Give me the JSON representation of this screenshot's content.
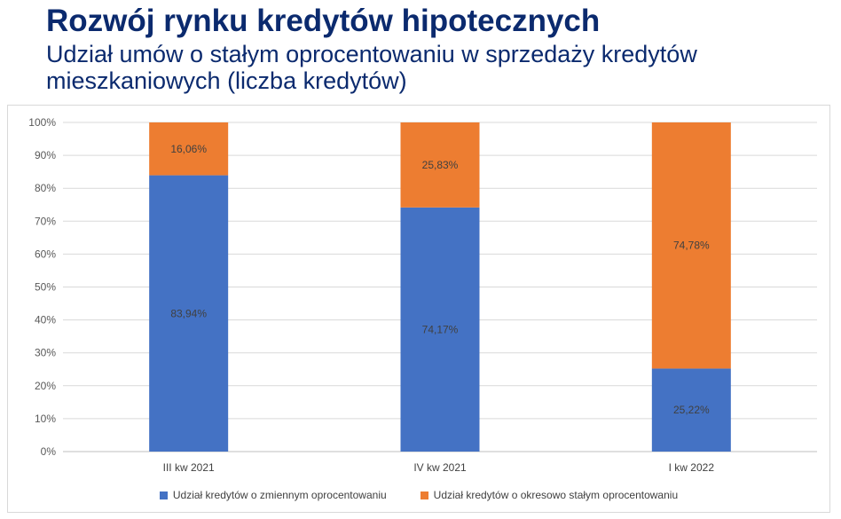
{
  "header": {
    "title": "Rozwój rynku kredytów hipotecznych",
    "subtitle": "Udział umów o stałym oprocentowaniu w sprzedaży kredytów mieszkaniowych (liczba kredytów)"
  },
  "chart_data": {
    "type": "bar",
    "stacked": true,
    "categories": [
      "III kw 2021",
      "IV kw 2021",
      "I kw 2022"
    ],
    "series": [
      {
        "name": "Udział kredytów o zmiennym oprocentowaniu",
        "values": [
          83.94,
          74.17,
          25.22
        ],
        "labels": [
          "83,94%",
          "74,17%",
          "25,22%"
        ],
        "color": "#4472c4"
      },
      {
        "name": "Udział kredytów o okresowo stałym oprocentowaniu",
        "values": [
          16.06,
          25.83,
          74.78
        ],
        "labels": [
          "16,06%",
          "25,83%",
          "74,78%"
        ],
        "color": "#ed7d31"
      }
    ],
    "yticks": [
      "0%",
      "10%",
      "20%",
      "30%",
      "40%",
      "50%",
      "60%",
      "70%",
      "80%",
      "90%",
      "100%"
    ],
    "ylim": [
      0,
      100
    ],
    "grid": true,
    "legend_position": "bottom",
    "title": "",
    "xlabel": "",
    "ylabel": ""
  }
}
